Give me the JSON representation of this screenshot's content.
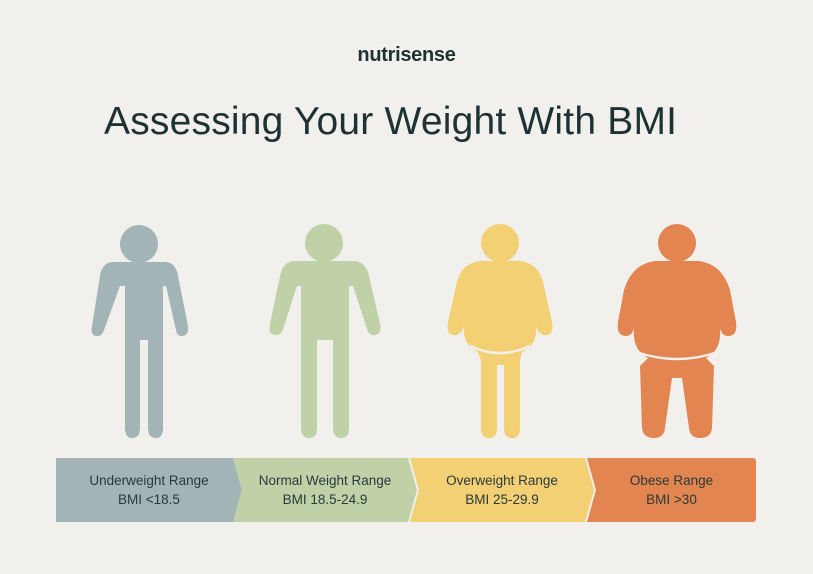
{
  "brand": "nutrisense",
  "title": "Assessing Your Weight With BMI",
  "colors": {
    "underweight": "#a2b4b6",
    "normal": "#c0d1a8",
    "overweight": "#f2d073",
    "obese": "#e28550",
    "text_dark": "#1e3234",
    "background": "#f1f0ec"
  },
  "ranges": [
    {
      "label": "Underweight Range",
      "bmi": "BMI <18.5"
    },
    {
      "label": "Normal Weight Range",
      "bmi": "BMI 18.5-24.9"
    },
    {
      "label": "Overweight Range",
      "bmi": "BMI 25-29.9"
    },
    {
      "label": "Obese Range",
      "bmi": "BMI >30"
    }
  ]
}
